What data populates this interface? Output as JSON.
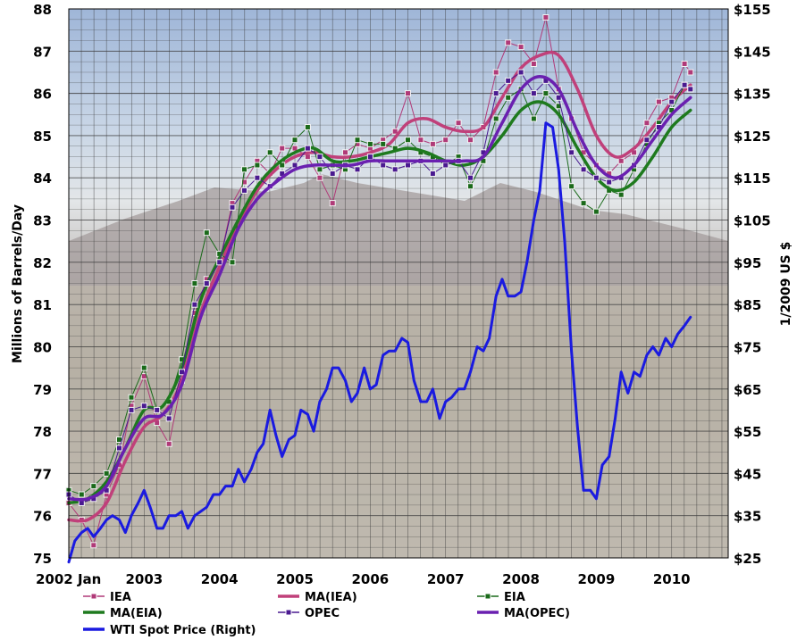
{
  "chart_data": {
    "type": "line",
    "ylabel": "Millions of Barrels/Day",
    "y2label": "1/2009 US $",
    "ylim": [
      75,
      88
    ],
    "y2lim": [
      25,
      155
    ],
    "x_range": [
      "2002-01",
      "2010-09"
    ],
    "grid": true,
    "legend_position": "bottom",
    "background": "photographic landscape image behind plot area",
    "x_ticks": [
      {
        "t": 2002.0,
        "label": "2002 Jan"
      },
      {
        "t": 2003.0,
        "label": "2003"
      },
      {
        "t": 2004.0,
        "label": "2004"
      },
      {
        "t": 2005.0,
        "label": "2005"
      },
      {
        "t": 2006.0,
        "label": "2006"
      },
      {
        "t": 2007.0,
        "label": "2007"
      },
      {
        "t": 2008.0,
        "label": "2008"
      },
      {
        "t": 2009.0,
        "label": "2009"
      },
      {
        "t": 2010.0,
        "label": "2010"
      }
    ],
    "y_ticks": [
      "75",
      "76",
      "77",
      "78",
      "79",
      "80",
      "81",
      "82",
      "83",
      "84",
      "85",
      "86",
      "87",
      "88"
    ],
    "y2_ticks": [
      "$25",
      "$35",
      "$45",
      "$55",
      "$65",
      "$75",
      "$85",
      "$95",
      "$105",
      "$115",
      "$125",
      "$135",
      "$145",
      "$155"
    ],
    "series": [
      {
        "name": "IEA",
        "axis": "left",
        "color": "#b03a78",
        "marker": "square",
        "x": [
          2002.0,
          2002.17,
          2002.33,
          2002.5,
          2002.67,
          2002.83,
          2003.0,
          2003.17,
          2003.33,
          2003.5,
          2003.67,
          2003.83,
          2004.0,
          2004.17,
          2004.33,
          2004.5,
          2004.67,
          2004.83,
          2005.0,
          2005.17,
          2005.33,
          2005.5,
          2005.67,
          2005.83,
          2006.0,
          2006.17,
          2006.33,
          2006.5,
          2006.67,
          2006.83,
          2007.0,
          2007.17,
          2007.33,
          2007.5,
          2007.67,
          2007.83,
          2008.0,
          2008.17,
          2008.33,
          2008.5,
          2008.67,
          2008.83,
          2009.0,
          2009.17,
          2009.33,
          2009.5,
          2009.67,
          2009.83,
          2010.0,
          2010.17,
          2010.25
        ],
        "values": [
          76.3,
          75.9,
          75.3,
          76.5,
          77.2,
          78.6,
          79.3,
          78.2,
          77.7,
          79.2,
          80.8,
          81.6,
          82.0,
          83.4,
          83.9,
          84.4,
          84.1,
          84.7,
          84.7,
          84.5,
          84.0,
          83.4,
          84.6,
          84.8,
          84.7,
          84.9,
          85.1,
          86.0,
          84.9,
          84.8,
          84.9,
          85.3,
          84.9,
          85.2,
          86.5,
          87.2,
          87.1,
          86.7,
          87.8,
          86.1,
          85.4,
          84.6,
          84.3,
          84.1,
          84.4,
          84.6,
          85.3,
          85.8,
          85.9,
          86.7,
          86.5
        ]
      },
      {
        "name": "MA(IEA)",
        "axis": "left",
        "color": "#c0407a",
        "marker": "none",
        "x": [
          2002.0,
          2002.25,
          2002.5,
          2002.75,
          2003.0,
          2003.25,
          2003.5,
          2003.75,
          2004.0,
          2004.25,
          2004.5,
          2004.75,
          2005.0,
          2005.25,
          2005.5,
          2005.75,
          2006.0,
          2006.25,
          2006.5,
          2006.75,
          2007.0,
          2007.25,
          2007.5,
          2007.75,
          2008.0,
          2008.25,
          2008.5,
          2008.75,
          2009.0,
          2009.25,
          2009.5,
          2009.75,
          2010.0,
          2010.25
        ],
        "values": [
          75.9,
          75.9,
          76.3,
          77.3,
          78.1,
          78.4,
          79.2,
          80.8,
          81.9,
          82.9,
          83.7,
          84.2,
          84.5,
          84.6,
          84.5,
          84.5,
          84.6,
          84.8,
          85.3,
          85.4,
          85.2,
          85.1,
          85.2,
          85.9,
          86.6,
          86.9,
          86.9,
          86.1,
          85.0,
          84.5,
          84.7,
          85.2,
          85.8,
          86.2
        ]
      },
      {
        "name": "EIA",
        "axis": "left",
        "color": "#1a6a1a",
        "marker": "square",
        "x": [
          2002.0,
          2002.17,
          2002.33,
          2002.5,
          2002.67,
          2002.83,
          2003.0,
          2003.17,
          2003.33,
          2003.5,
          2003.67,
          2003.83,
          2004.0,
          2004.17,
          2004.33,
          2004.5,
          2004.67,
          2004.83,
          2005.0,
          2005.17,
          2005.33,
          2005.5,
          2005.67,
          2005.83,
          2006.0,
          2006.17,
          2006.33,
          2006.5,
          2006.67,
          2006.83,
          2007.0,
          2007.17,
          2007.33,
          2007.5,
          2007.67,
          2007.83,
          2008.0,
          2008.17,
          2008.33,
          2008.5,
          2008.67,
          2008.83,
          2009.0,
          2009.17,
          2009.33,
          2009.5,
          2009.67,
          2009.83,
          2010.0,
          2010.17,
          2010.25
        ],
        "values": [
          76.6,
          76.5,
          76.7,
          77.0,
          77.8,
          78.8,
          79.5,
          78.5,
          78.7,
          79.7,
          81.5,
          82.7,
          82.2,
          82.0,
          84.2,
          84.3,
          84.6,
          84.3,
          84.9,
          85.2,
          84.2,
          84.3,
          84.2,
          84.9,
          84.8,
          84.8,
          84.7,
          84.9,
          84.6,
          84.5,
          84.3,
          84.5,
          83.8,
          84.4,
          85.4,
          85.9,
          86.1,
          85.4,
          86.0,
          85.7,
          83.8,
          83.4,
          83.2,
          83.7,
          83.6,
          84.2,
          84.8,
          85.3,
          85.6,
          86.2,
          86.1
        ]
      },
      {
        "name": "MA(EIA)",
        "axis": "left",
        "color": "#1e7a1e",
        "marker": "none",
        "x": [
          2002.0,
          2002.25,
          2002.5,
          2002.75,
          2003.0,
          2003.25,
          2003.5,
          2003.75,
          2004.0,
          2004.25,
          2004.5,
          2004.75,
          2005.0,
          2005.25,
          2005.5,
          2005.75,
          2006.0,
          2006.25,
          2006.5,
          2006.75,
          2007.0,
          2007.25,
          2007.5,
          2007.75,
          2008.0,
          2008.25,
          2008.5,
          2008.75,
          2009.0,
          2009.25,
          2009.5,
          2009.75,
          2010.0,
          2010.25
        ],
        "values": [
          76.3,
          76.4,
          76.8,
          77.6,
          78.5,
          78.6,
          79.5,
          81.1,
          82.1,
          83.0,
          83.8,
          84.3,
          84.6,
          84.7,
          84.4,
          84.4,
          84.5,
          84.6,
          84.7,
          84.6,
          84.4,
          84.3,
          84.5,
          85.0,
          85.6,
          85.8,
          85.5,
          84.7,
          84.0,
          83.7,
          83.9,
          84.5,
          85.2,
          85.6
        ]
      },
      {
        "name": "OPEC",
        "axis": "left",
        "color": "#4a1a90",
        "marker": "square",
        "x": [
          2002.0,
          2002.17,
          2002.33,
          2002.5,
          2002.67,
          2002.83,
          2003.0,
          2003.17,
          2003.33,
          2003.5,
          2003.67,
          2003.83,
          2004.0,
          2004.17,
          2004.33,
          2004.5,
          2004.67,
          2004.83,
          2005.0,
          2005.17,
          2005.33,
          2005.5,
          2005.67,
          2005.83,
          2006.0,
          2006.17,
          2006.33,
          2006.5,
          2006.67,
          2006.83,
          2007.0,
          2007.17,
          2007.33,
          2007.5,
          2007.67,
          2007.83,
          2008.0,
          2008.17,
          2008.33,
          2008.5,
          2008.67,
          2008.83,
          2009.0,
          2009.17,
          2009.33,
          2009.5,
          2009.67,
          2009.83,
          2010.0,
          2010.17,
          2010.25
        ],
        "values": [
          76.5,
          76.3,
          76.4,
          76.6,
          77.6,
          78.5,
          78.6,
          78.5,
          78.3,
          79.4,
          81.0,
          81.5,
          82.0,
          83.3,
          83.7,
          84.0,
          83.8,
          84.1,
          84.3,
          84.7,
          84.5,
          84.1,
          84.3,
          84.2,
          84.5,
          84.3,
          84.2,
          84.3,
          84.4,
          84.1,
          84.3,
          84.4,
          84.0,
          84.6,
          86.0,
          86.3,
          86.5,
          86.0,
          86.3,
          85.9,
          84.6,
          84.2,
          84.0,
          83.9,
          84.0,
          84.3,
          84.9,
          85.2,
          85.8,
          86.2,
          86.1
        ]
      },
      {
        "name": "MA(OPEC)",
        "axis": "left",
        "color": "#6a20b0",
        "marker": "none",
        "x": [
          2002.0,
          2002.25,
          2002.5,
          2002.75,
          2003.0,
          2003.25,
          2003.5,
          2003.75,
          2004.0,
          2004.25,
          2004.5,
          2004.75,
          2005.0,
          2005.25,
          2005.5,
          2005.75,
          2006.0,
          2006.25,
          2006.5,
          2006.75,
          2007.0,
          2007.25,
          2007.5,
          2007.75,
          2008.0,
          2008.25,
          2008.5,
          2008.75,
          2009.0,
          2009.25,
          2009.5,
          2009.75,
          2010.0,
          2010.25
        ],
        "values": [
          76.4,
          76.4,
          76.7,
          77.6,
          78.3,
          78.4,
          79.1,
          80.7,
          81.7,
          82.8,
          83.5,
          83.9,
          84.2,
          84.3,
          84.3,
          84.3,
          84.4,
          84.4,
          84.4,
          84.4,
          84.4,
          84.4,
          84.5,
          85.3,
          86.1,
          86.4,
          86.1,
          85.1,
          84.3,
          84.0,
          84.3,
          84.9,
          85.5,
          85.9
        ]
      },
      {
        "name": "WTI Spot Price (Right)",
        "axis": "right",
        "color": "#1a1ae0",
        "marker": "none",
        "x": [
          2002.0,
          2002.08,
          2002.17,
          2002.25,
          2002.33,
          2002.42,
          2002.5,
          2002.58,
          2002.67,
          2002.75,
          2002.83,
          2002.92,
          2003.0,
          2003.08,
          2003.17,
          2003.25,
          2003.33,
          2003.42,
          2003.5,
          2003.58,
          2003.67,
          2003.75,
          2003.83,
          2003.92,
          2004.0,
          2004.08,
          2004.17,
          2004.25,
          2004.33,
          2004.42,
          2004.5,
          2004.58,
          2004.67,
          2004.75,
          2004.83,
          2004.92,
          2005.0,
          2005.08,
          2005.17,
          2005.25,
          2005.33,
          2005.42,
          2005.5,
          2005.58,
          2005.67,
          2005.75,
          2005.83,
          2005.92,
          2006.0,
          2006.08,
          2006.17,
          2006.25,
          2006.33,
          2006.42,
          2006.5,
          2006.58,
          2006.67,
          2006.75,
          2006.83,
          2006.92,
          2007.0,
          2007.08,
          2007.17,
          2007.25,
          2007.33,
          2007.42,
          2007.5,
          2007.58,
          2007.67,
          2007.75,
          2007.83,
          2007.92,
          2008.0,
          2008.08,
          2008.17,
          2008.25,
          2008.33,
          2008.42,
          2008.5,
          2008.58,
          2008.67,
          2008.75,
          2008.83,
          2008.92,
          2009.0,
          2009.08,
          2009.17,
          2009.25,
          2009.33,
          2009.42,
          2009.5,
          2009.58,
          2009.67,
          2009.75,
          2009.83,
          2009.92,
          2010.0,
          2010.08,
          2010.17,
          2010.25
        ],
        "values": [
          24,
          29,
          31,
          32,
          30,
          32,
          34,
          35,
          34,
          31,
          35,
          38,
          41,
          37,
          32,
          32,
          35,
          35,
          36,
          32,
          35,
          36,
          37,
          40,
          40,
          42,
          42,
          46,
          43,
          46,
          50,
          52,
          60,
          54,
          49,
          53,
          54,
          60,
          59,
          55,
          62,
          65,
          70,
          70,
          67,
          62,
          64,
          70,
          65,
          66,
          73,
          74,
          74,
          77,
          76,
          67,
          62,
          62,
          65,
          58,
          62,
          63,
          65,
          65,
          69,
          75,
          74,
          77,
          87,
          91,
          87,
          87,
          88,
          95,
          105,
          112,
          128,
          127,
          117,
          100,
          74,
          56,
          41,
          41,
          39,
          47,
          49,
          58,
          69,
          64,
          69,
          68,
          73,
          75,
          73,
          77,
          75,
          78,
          80,
          82
        ]
      }
    ]
  },
  "legend": [
    {
      "label": "IEA",
      "color": "#b03a78",
      "marker": true
    },
    {
      "label": "MA(IEA)",
      "color": "#c0407a",
      "marker": false
    },
    {
      "label": "EIA",
      "color": "#1a6a1a",
      "marker": true
    },
    {
      "label": "MA(EIA)",
      "color": "#1e7a1e",
      "marker": false
    },
    {
      "label": "OPEC",
      "color": "#4a1a90",
      "marker": true
    },
    {
      "label": "MA(OPEC)",
      "color": "#6a20b0",
      "marker": false
    },
    {
      "label": "WTI Spot Price (Right)",
      "color": "#1a1ae0",
      "marker": false
    }
  ]
}
